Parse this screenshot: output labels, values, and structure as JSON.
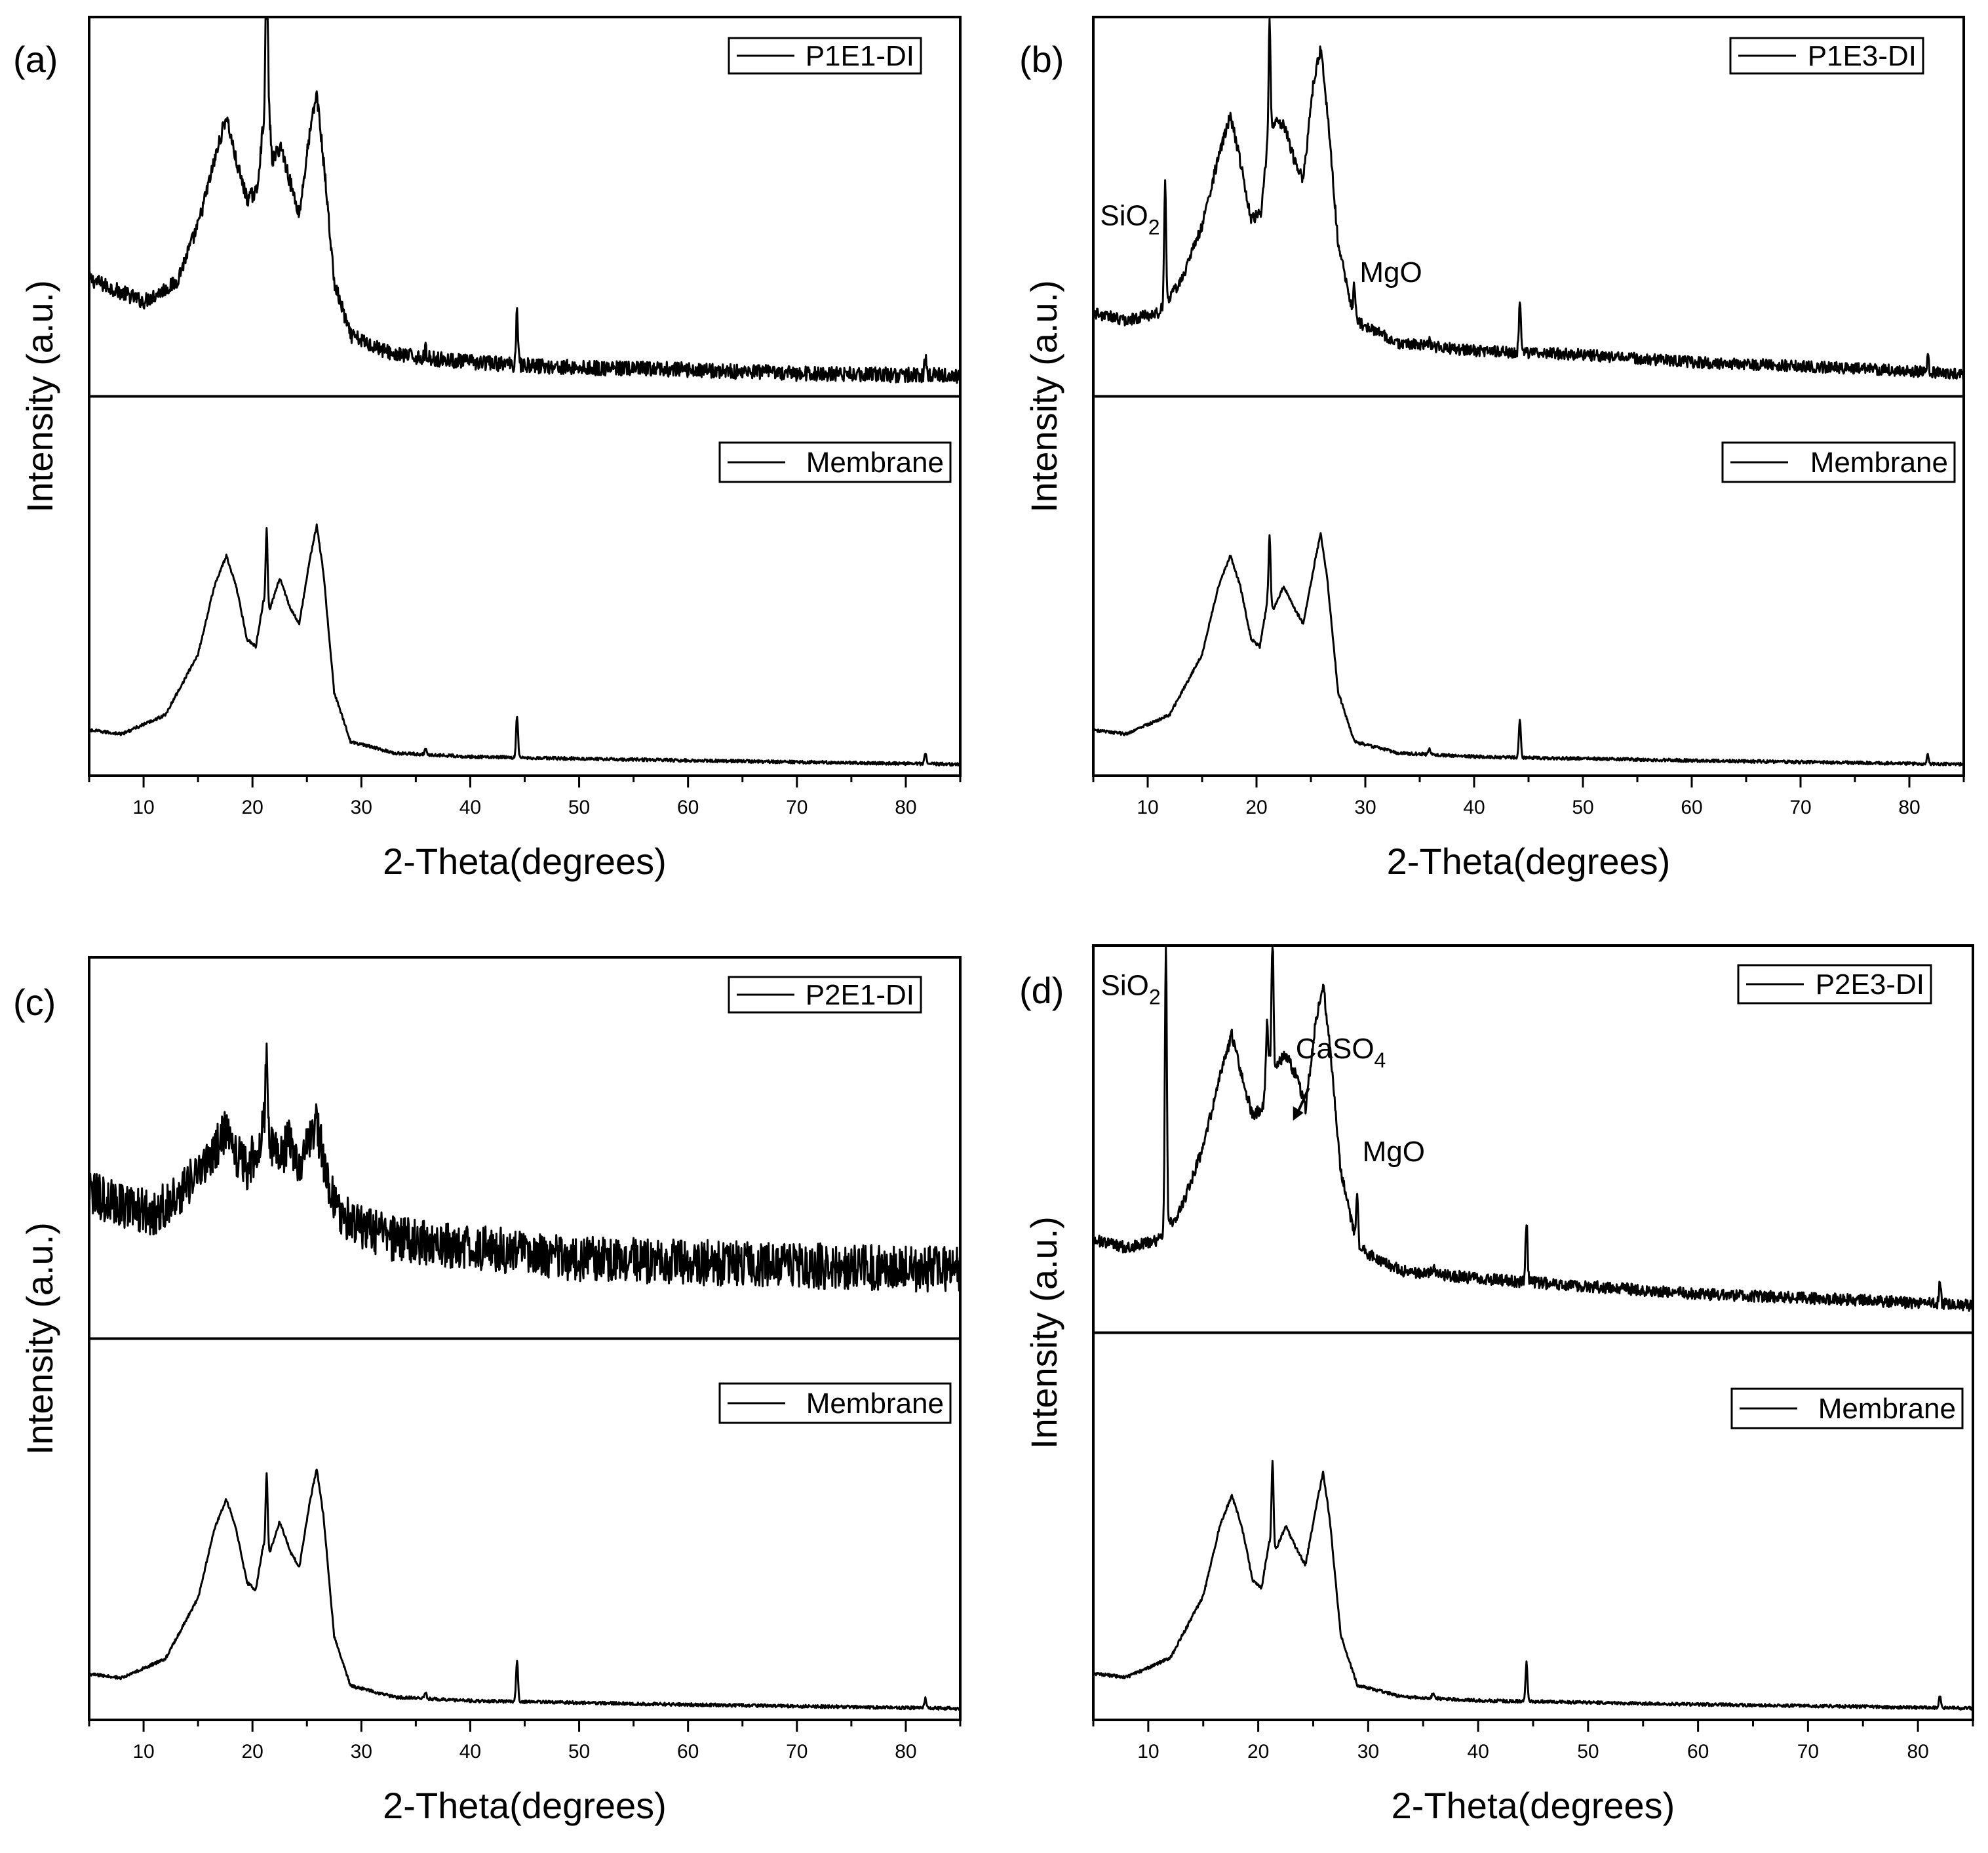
{
  "chart_data": [
    {
      "panel_label": "(a)",
      "type": "line",
      "xlabel": "2-Theta(degrees)",
      "ylabel": "Intensity (a.u.)",
      "xlim": [
        5,
        85
      ],
      "x_ticks": [
        10,
        20,
        30,
        40,
        50,
        60,
        70,
        80
      ],
      "stacked_traces": true,
      "series": [
        {
          "name": "P1E1-DI",
          "position": "upper",
          "noise": 0.02,
          "baseline": [
            [
              5,
              0.31
            ],
            [
              10,
              0.25
            ],
            [
              13,
              0.3
            ],
            [
              15,
              0.45
            ],
            [
              16.5,
              0.62
            ],
            [
              17.6,
              0.74
            ],
            [
              18.5,
              0.62
            ],
            [
              19.5,
              0.52
            ],
            [
              20.4,
              0.54
            ],
            [
              21.0,
              0.72
            ],
            [
              21.4,
              0.82
            ],
            [
              21.8,
              0.62
            ],
            [
              22.6,
              0.66
            ],
            [
              23.5,
              0.56
            ],
            [
              24.3,
              0.48
            ],
            [
              25.2,
              0.68
            ],
            [
              25.9,
              0.8
            ],
            [
              26.6,
              0.6
            ],
            [
              27.5,
              0.3
            ],
            [
              29,
              0.16
            ],
            [
              33,
              0.11
            ],
            [
              40,
              0.09
            ],
            [
              50,
              0.075
            ],
            [
              60,
              0.07
            ],
            [
              70,
              0.06
            ],
            [
              85,
              0.055
            ]
          ],
          "peaks": [
            {
              "x": 21.3,
              "height": 0.4
            },
            {
              "x": 44.3,
              "height": 0.15
            },
            {
              "x": 81.8,
              "height": 0.04
            },
            {
              "x": 35.9,
              "height": 0.02
            }
          ]
        },
        {
          "name": "Membrane",
          "position": "lower",
          "noise": 0.004,
          "baseline": [
            [
              5,
              0.12
            ],
            [
              8,
              0.11
            ],
            [
              12,
              0.16
            ],
            [
              15,
              0.32
            ],
            [
              16.5,
              0.5
            ],
            [
              17.6,
              0.58
            ],
            [
              18.5,
              0.5
            ],
            [
              19.5,
              0.36
            ],
            [
              20.3,
              0.34
            ],
            [
              21.0,
              0.46
            ],
            [
              21.6,
              0.44
            ],
            [
              22.5,
              0.52
            ],
            [
              23.5,
              0.44
            ],
            [
              24.3,
              0.4
            ],
            [
              25.2,
              0.56
            ],
            [
              25.9,
              0.66
            ],
            [
              26.5,
              0.54
            ],
            [
              27.5,
              0.22
            ],
            [
              29,
              0.09
            ],
            [
              33,
              0.06
            ],
            [
              40,
              0.05
            ],
            [
              60,
              0.04
            ],
            [
              85,
              0.03
            ]
          ],
          "peaks": [
            {
              "x": 21.3,
              "height": 0.2
            },
            {
              "x": 44.3,
              "height": 0.11
            },
            {
              "x": 81.8,
              "height": 0.025
            },
            {
              "x": 35.9,
              "height": 0.015
            }
          ]
        }
      ],
      "annotations": []
    },
    {
      "panel_label": "(b)",
      "type": "line",
      "xlabel": "2-Theta(degrees)",
      "ylabel": "Intensity (a.u.)",
      "xlim": [
        5,
        85
      ],
      "x_ticks": [
        10,
        20,
        30,
        40,
        50,
        60,
        70,
        80
      ],
      "stacked_traces": true,
      "series": [
        {
          "name": "P1E3-DI",
          "position": "upper",
          "noise": 0.015,
          "baseline": [
            [
              5,
              0.22
            ],
            [
              8,
              0.2
            ],
            [
              11,
              0.22
            ],
            [
              13,
              0.3
            ],
            [
              15,
              0.45
            ],
            [
              16.5,
              0.63
            ],
            [
              17.6,
              0.74
            ],
            [
              18.5,
              0.62
            ],
            [
              19.5,
              0.47
            ],
            [
              20.4,
              0.48
            ],
            [
              21.0,
              0.66
            ],
            [
              21.5,
              0.72
            ],
            [
              22.5,
              0.72
            ],
            [
              23.5,
              0.62
            ],
            [
              24.3,
              0.57
            ],
            [
              25.2,
              0.82
            ],
            [
              25.9,
              0.92
            ],
            [
              26.6,
              0.72
            ],
            [
              27.5,
              0.4
            ],
            [
              29,
              0.2
            ],
            [
              33,
              0.14
            ],
            [
              40,
              0.12
            ],
            [
              50,
              0.11
            ],
            [
              60,
              0.09
            ],
            [
              70,
              0.08
            ],
            [
              85,
              0.06
            ]
          ],
          "peaks": [
            {
              "x": 21.2,
              "height": 0.3
            },
            {
              "x": 11.6,
              "height": 0.32
            },
            {
              "x": 29.0,
              "height": 0.1
            },
            {
              "x": 44.2,
              "height": 0.13
            },
            {
              "x": 81.7,
              "height": 0.04
            },
            {
              "x": 35.9,
              "height": 0.02
            }
          ]
        },
        {
          "name": "Membrane",
          "position": "lower",
          "noise": 0.004,
          "baseline": [
            [
              5,
              0.12
            ],
            [
              8,
              0.11
            ],
            [
              12,
              0.16
            ],
            [
              15,
              0.32
            ],
            [
              16.5,
              0.5
            ],
            [
              17.6,
              0.58
            ],
            [
              18.5,
              0.5
            ],
            [
              19.5,
              0.36
            ],
            [
              20.3,
              0.34
            ],
            [
              21.0,
              0.46
            ],
            [
              21.6,
              0.44
            ],
            [
              22.5,
              0.5
            ],
            [
              23.5,
              0.44
            ],
            [
              24.3,
              0.4
            ],
            [
              25.2,
              0.54
            ],
            [
              25.9,
              0.64
            ],
            [
              26.5,
              0.52
            ],
            [
              27.5,
              0.22
            ],
            [
              29,
              0.09
            ],
            [
              33,
              0.06
            ],
            [
              40,
              0.05
            ],
            [
              60,
              0.04
            ],
            [
              85,
              0.03
            ]
          ],
          "peaks": [
            {
              "x": 21.2,
              "height": 0.18
            },
            {
              "x": 44.2,
              "height": 0.1
            },
            {
              "x": 81.7,
              "height": 0.025
            },
            {
              "x": 35.9,
              "height": 0.015
            }
          ]
        }
      ],
      "annotations": [
        {
          "label": "SiO",
          "subscript": "2",
          "x": 11.6
        },
        {
          "label": "MgO",
          "subscript": "",
          "x": 29.0
        }
      ]
    },
    {
      "panel_label": "(c)",
      "type": "line",
      "xlabel": "2-Theta(degrees)",
      "ylabel": "Intensity (a.u.)",
      "xlim": [
        5,
        85
      ],
      "x_ticks": [
        10,
        20,
        30,
        40,
        50,
        60,
        70,
        80
      ],
      "stacked_traces": true,
      "series": [
        {
          "name": "P2E1-DI",
          "position": "upper",
          "noise": 0.06,
          "baseline": [
            [
              5,
              0.38
            ],
            [
              8,
              0.35
            ],
            [
              11,
              0.33
            ],
            [
              14,
              0.4
            ],
            [
              16.5,
              0.49
            ],
            [
              17.6,
              0.55
            ],
            [
              18.5,
              0.48
            ],
            [
              19.5,
              0.45
            ],
            [
              20.5,
              0.5
            ],
            [
              21.0,
              0.56
            ],
            [
              21.6,
              0.52
            ],
            [
              22.5,
              0.48
            ],
            [
              23.5,
              0.52
            ],
            [
              24.3,
              0.44
            ],
            [
              25.2,
              0.52
            ],
            [
              25.9,
              0.56
            ],
            [
              26.6,
              0.46
            ],
            [
              27.5,
              0.36
            ],
            [
              29,
              0.3
            ],
            [
              33,
              0.26
            ],
            [
              40,
              0.24
            ],
            [
              50,
              0.21
            ],
            [
              60,
              0.2
            ],
            [
              85,
              0.18
            ]
          ],
          "peaks": [
            {
              "x": 21.3,
              "height": 0.22
            },
            {
              "x": 44.3,
              "height": 0.02
            }
          ]
        },
        {
          "name": "Membrane",
          "position": "lower",
          "noise": 0.004,
          "baseline": [
            [
              5,
              0.12
            ],
            [
              8,
              0.11
            ],
            [
              12,
              0.16
            ],
            [
              15,
              0.32
            ],
            [
              16.5,
              0.5
            ],
            [
              17.6,
              0.58
            ],
            [
              18.5,
              0.5
            ],
            [
              19.5,
              0.36
            ],
            [
              20.3,
              0.34
            ],
            [
              21.0,
              0.46
            ],
            [
              21.6,
              0.44
            ],
            [
              22.5,
              0.52
            ],
            [
              23.5,
              0.44
            ],
            [
              24.3,
              0.4
            ],
            [
              25.2,
              0.56
            ],
            [
              25.9,
              0.66
            ],
            [
              26.5,
              0.54
            ],
            [
              27.5,
              0.22
            ],
            [
              29,
              0.09
            ],
            [
              33,
              0.06
            ],
            [
              40,
              0.05
            ],
            [
              60,
              0.04
            ],
            [
              85,
              0.03
            ]
          ],
          "peaks": [
            {
              "x": 21.3,
              "height": 0.2
            },
            {
              "x": 44.3,
              "height": 0.11
            },
            {
              "x": 81.8,
              "height": 0.025
            },
            {
              "x": 35.9,
              "height": 0.015
            }
          ]
        }
      ],
      "annotations": []
    },
    {
      "panel_label": "(d)",
      "type": "line",
      "xlabel": "2-Theta(degrees)",
      "ylabel": "Intensity (a.u.)",
      "xlim": [
        5,
        85
      ],
      "x_ticks": [
        10,
        20,
        30,
        40,
        50,
        60,
        70,
        80
      ],
      "stacked_traces": true,
      "series": [
        {
          "name": "P2E3-DI",
          "position": "upper",
          "noise": 0.015,
          "baseline": [
            [
              5,
              0.24
            ],
            [
              8,
              0.22
            ],
            [
              11,
              0.24
            ],
            [
              13,
              0.32
            ],
            [
              15,
              0.48
            ],
            [
              16.5,
              0.66
            ],
            [
              17.6,
              0.77
            ],
            [
              18.5,
              0.66
            ],
            [
              19.5,
              0.56
            ],
            [
              20.4,
              0.58
            ],
            [
              21.0,
              0.7
            ],
            [
              21.5,
              0.68
            ],
            [
              22.5,
              0.72
            ],
            [
              23.5,
              0.66
            ],
            [
              24.3,
              0.58
            ],
            [
              25.2,
              0.8
            ],
            [
              25.9,
              0.9
            ],
            [
              26.6,
              0.72
            ],
            [
              27.5,
              0.42
            ],
            [
              29,
              0.22
            ],
            [
              33,
              0.16
            ],
            [
              40,
              0.14
            ],
            [
              50,
              0.12
            ],
            [
              60,
              0.1
            ],
            [
              70,
              0.09
            ],
            [
              85,
              0.07
            ]
          ],
          "peaks": [
            {
              "x": 11.6,
              "height": 0.74
            },
            {
              "x": 21.3,
              "height": 0.34
            },
            {
              "x": 20.8,
              "height": 0.14
            },
            {
              "x": 29.0,
              "height": 0.14
            },
            {
              "x": 44.4,
              "height": 0.16
            },
            {
              "x": 82.0,
              "height": 0.05
            },
            {
              "x": 35.9,
              "height": 0.02
            }
          ]
        },
        {
          "name": "Membrane",
          "position": "lower",
          "noise": 0.004,
          "baseline": [
            [
              5,
              0.12
            ],
            [
              8,
              0.11
            ],
            [
              12,
              0.16
            ],
            [
              15,
              0.32
            ],
            [
              16.5,
              0.5
            ],
            [
              17.6,
              0.58
            ],
            [
              18.5,
              0.5
            ],
            [
              19.5,
              0.36
            ],
            [
              20.3,
              0.34
            ],
            [
              21.0,
              0.46
            ],
            [
              21.6,
              0.44
            ],
            [
              22.5,
              0.5
            ],
            [
              23.5,
              0.44
            ],
            [
              24.3,
              0.4
            ],
            [
              25.2,
              0.54
            ],
            [
              25.9,
              0.64
            ],
            [
              26.5,
              0.52
            ],
            [
              27.5,
              0.22
            ],
            [
              29,
              0.09
            ],
            [
              33,
              0.06
            ],
            [
              40,
              0.05
            ],
            [
              60,
              0.04
            ],
            [
              85,
              0.03
            ]
          ],
          "peaks": [
            {
              "x": 21.3,
              "height": 0.22
            },
            {
              "x": 44.4,
              "height": 0.1
            },
            {
              "x": 82.0,
              "height": 0.03
            },
            {
              "x": 35.9,
              "height": 0.015
            }
          ]
        }
      ],
      "annotations": [
        {
          "label": "SiO",
          "subscript": "2",
          "x": 11.6
        },
        {
          "label": "CaSO",
          "subscript": "4",
          "x": 24.0,
          "arrow": true
        },
        {
          "label": "MgO",
          "subscript": "",
          "x": 29.0
        }
      ]
    }
  ]
}
